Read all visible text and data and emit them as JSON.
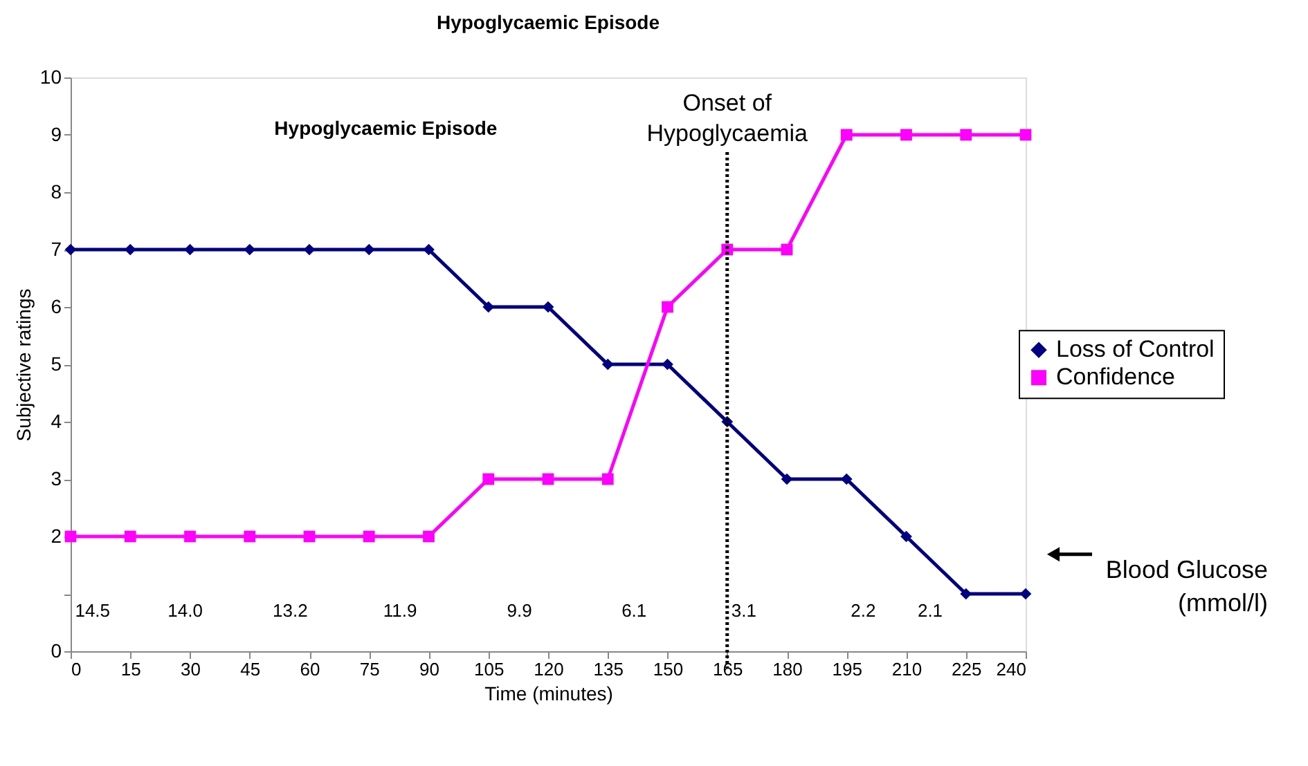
{
  "chart_data": {
    "type": "line",
    "title": "Hypoglycaemic Episode",
    "xlabel": "Time (minutes)",
    "ylabel": "Subjective ratings",
    "x": [
      0,
      15,
      30,
      45,
      60,
      75,
      90,
      105,
      120,
      135,
      150,
      165,
      180,
      195,
      210,
      225,
      240
    ],
    "series": [
      {
        "name": "Loss of Control",
        "color": "#000080",
        "marker": "diamond",
        "values": [
          7,
          7,
          7,
          7,
          7,
          7,
          7,
          6,
          6,
          5,
          5,
          4,
          3,
          3,
          2,
          1,
          1
        ]
      },
      {
        "name": "Confidence",
        "color": "#ff00ff",
        "marker": "square",
        "values": [
          2,
          2,
          2,
          2,
          2,
          2,
          2,
          3,
          3,
          3,
          6,
          7,
          7,
          9,
          9,
          9,
          9
        ]
      }
    ],
    "xlim": [
      0,
      240
    ],
    "xticks": [
      0,
      15,
      30,
      45,
      60,
      75,
      90,
      105,
      120,
      135,
      150,
      165,
      180,
      195,
      210,
      225,
      240
    ],
    "ylim": [
      0,
      10
    ],
    "yticks": [
      0,
      {
        "value": 1,
        "label": null
      },
      2,
      3,
      4,
      5,
      6,
      7,
      8,
      9,
      10
    ],
    "ref_lines": [
      {
        "axis": "x",
        "value": 165,
        "label": "Onset of\nHypoglycaemia",
        "color": "#000000",
        "line_style": "dotted"
      }
    ],
    "annotations": [
      "Hypoglycaemic Episode",
      "Blood Glucose\n(mmol/l)",
      "14.5",
      "14.0",
      "13.2",
      "11.9",
      "9.9",
      "6.1",
      "3.1",
      "2.2",
      "2.1"
    ],
    "legend": "right",
    "grid": false,
    "line_style": "solid"
  }
}
